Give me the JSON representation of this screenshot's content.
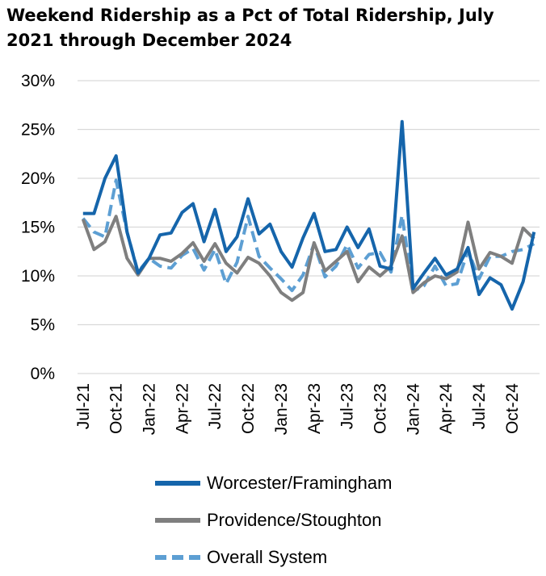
{
  "chart_data": {
    "type": "line",
    "title": "Weekend Ridership as a Pct of Total Ridership, July 2021 through December 2024",
    "xlabel": "",
    "ylabel": "",
    "ylim": [
      0,
      30
    ],
    "yticks": [
      "0%",
      "5%",
      "10%",
      "15%",
      "20%",
      "25%",
      "30%"
    ],
    "grid": true,
    "legend_position": "bottom",
    "x": [
      "Jul-21",
      "Aug-21",
      "Sep-21",
      "Oct-21",
      "Nov-21",
      "Dec-21",
      "Jan-22",
      "Feb-22",
      "Mar-22",
      "Apr-22",
      "May-22",
      "Jun-22",
      "Jul-22",
      "Aug-22",
      "Sep-22",
      "Oct-22",
      "Nov-22",
      "Dec-22",
      "Jan-23",
      "Feb-23",
      "Mar-23",
      "Apr-23",
      "May-23",
      "Jun-23",
      "Jul-23",
      "Aug-23",
      "Sep-23",
      "Oct-23",
      "Nov-23",
      "Dec-23",
      "Jan-24",
      "Feb-24",
      "Mar-24",
      "Apr-24",
      "May-24",
      "Jun-24",
      "Jul-24",
      "Aug-24",
      "Sep-24",
      "Oct-24",
      "Nov-24",
      "Dec-24"
    ],
    "xticks": [
      "Jul-21",
      "Oct-21",
      "Jan-22",
      "Apr-22",
      "Jul-22",
      "Oct-22",
      "Jan-23",
      "Apr-23",
      "Jul-23",
      "Oct-23",
      "Jan-24",
      "Apr-24",
      "Jul-24",
      "Oct-24"
    ],
    "series": [
      {
        "name": "Worcester/Framingham",
        "color": "#1565ab",
        "dash": "solid",
        "values": [
          16.4,
          16.4,
          20.0,
          22.3,
          14.5,
          10.3,
          11.8,
          14.2,
          14.4,
          16.5,
          17.4,
          13.5,
          16.8,
          12.5,
          14.0,
          17.9,
          14.3,
          15.3,
          12.5,
          10.9,
          13.9,
          16.4,
          12.5,
          12.7,
          15.0,
          12.9,
          14.8,
          11.0,
          10.7,
          25.8,
          8.7,
          10.3,
          11.8,
          10.1,
          10.7,
          12.9,
          8.1,
          9.8,
          9.1,
          6.6,
          9.4,
          14.5
        ]
      },
      {
        "name": "Providence/Stoughton",
        "color": "#7f7f7f",
        "dash": "solid",
        "values": [
          15.8,
          12.7,
          13.5,
          16.1,
          11.8,
          10.1,
          11.8,
          11.8,
          11.5,
          12.3,
          13.4,
          11.5,
          13.3,
          11.3,
          10.3,
          11.9,
          11.3,
          10.0,
          8.3,
          7.5,
          8.3,
          13.4,
          10.5,
          11.5,
          12.5,
          9.4,
          10.9,
          10.0,
          11.0,
          14.1,
          8.3,
          9.3,
          10.0,
          9.7,
          10.4,
          15.5,
          10.7,
          12.4,
          12.0,
          11.3,
          14.9,
          13.8
        ]
      },
      {
        "name": "Overall System",
        "color": "#5d9fd3",
        "dash": "dashed",
        "values": [
          15.9,
          14.5,
          14.0,
          19.8,
          14.5,
          10.4,
          11.8,
          11.0,
          10.8,
          12.1,
          12.8,
          10.6,
          12.7,
          9.2,
          11.4,
          16.1,
          12.0,
          10.8,
          9.7,
          8.5,
          10.1,
          13.3,
          9.9,
          11.0,
          13.2,
          10.8,
          12.2,
          12.4,
          10.4,
          16.2,
          8.4,
          9.0,
          11.0,
          9.0,
          9.2,
          12.6,
          9.7,
          12.0,
          12.0,
          12.5,
          12.7,
          13.3
        ]
      }
    ]
  }
}
